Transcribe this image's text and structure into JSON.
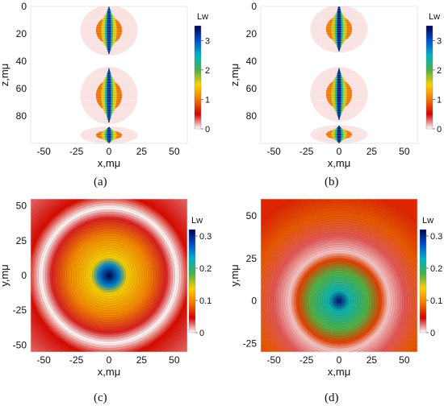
{
  "colorbar_stops": [
    "#ffffff",
    "#d40000",
    "#f07800",
    "#ffd000",
    "#48b048",
    "#00b2c8",
    "#0050d0",
    "#000050"
  ],
  "panels": [
    {
      "caption": "(a)",
      "type": "heatmap",
      "plane": "xz",
      "xlabel": "x,mμ",
      "ylabel": "z,mμ",
      "cbar_label": "Lw",
      "xlim": [
        -60,
        60
      ],
      "ylim": [
        0,
        100
      ],
      "y_inverted": true,
      "xticks": [
        -50,
        -25,
        0,
        25,
        50
      ],
      "yticks": [
        0,
        20,
        40,
        60,
        80
      ],
      "cbar_range": [
        0,
        3.5
      ],
      "cbar_ticks": [
        0,
        1,
        2,
        3
      ],
      "peak_value": 3.2,
      "focal_lobes_z": [
        [
          0,
          35
        ],
        [
          45,
          85
        ],
        [
          88,
          100
        ]
      ],
      "bright_spots_z": [
        10,
        65
      ]
    },
    {
      "caption": "(b)",
      "type": "heatmap",
      "plane": "xz",
      "xlabel": "x,mμ",
      "ylabel": "z,mμ",
      "cbar_label": "Lw",
      "xlim": [
        -60,
        60
      ],
      "ylim": [
        0,
        100
      ],
      "y_inverted": true,
      "xticks": [
        -50,
        -25,
        0,
        25,
        50
      ],
      "yticks": [
        0,
        20,
        40,
        60,
        80
      ],
      "cbar_range": [
        0,
        3.5
      ],
      "cbar_ticks": [
        0,
        1,
        2,
        3
      ],
      "peak_value": 3.3,
      "focal_lobes_z": [
        [
          0,
          33
        ],
        [
          45,
          83
        ],
        [
          87,
          100
        ]
      ],
      "bright_spots_z": [
        5,
        60
      ]
    },
    {
      "caption": "(c)",
      "type": "heatmap",
      "plane": "xy",
      "xlabel": "x,mμ",
      "ylabel": "y,mμ",
      "cbar_label": "Lw",
      "xlim": [
        -60,
        60
      ],
      "ylim": [
        -55,
        55
      ],
      "xticks": [
        -50,
        -25,
        0,
        25,
        50
      ],
      "yticks": [
        50,
        25,
        0,
        -25,
        -50
      ],
      "cbar_range": [
        0,
        0.32
      ],
      "cbar_ticks": [
        0,
        0.1,
        0.2,
        0.3
      ],
      "radial_profile": [
        {
          "r": 0,
          "value": 0.32
        },
        {
          "r": 8,
          "value": 0.25
        },
        {
          "r": 14,
          "value": 0.14
        },
        {
          "r": 30,
          "value": 0.1
        },
        {
          "r": 44,
          "value": 0.04
        },
        {
          "r": 52,
          "value": 0.0
        },
        {
          "r": 62,
          "value": 0.05
        },
        {
          "r": 80,
          "value": 0.03
        }
      ]
    },
    {
      "caption": "(d)",
      "type": "heatmap",
      "plane": "xy",
      "xlabel": "x,mμ",
      "ylabel": "y,mμ",
      "cbar_label": "Lw",
      "xlim": [
        -60,
        60
      ],
      "ylim": [
        -30,
        60
      ],
      "xticks": [
        -50,
        -25,
        0,
        25,
        50
      ],
      "yticks": [
        50,
        25,
        0,
        -25
      ],
      "cbar_range": [
        0,
        0.32
      ],
      "cbar_ticks": [
        0,
        0.1,
        0.2,
        0.3
      ],
      "radial_profile": [
        {
          "r": 0,
          "value": 0.31
        },
        {
          "r": 8,
          "value": 0.22
        },
        {
          "r": 22,
          "value": 0.18
        },
        {
          "r": 32,
          "value": 0.07
        },
        {
          "r": 38,
          "value": 0.01
        },
        {
          "r": 50,
          "value": 0.03
        },
        {
          "r": 66,
          "value": 0.08
        },
        {
          "r": 85,
          "value": 0.06
        }
      ]
    }
  ]
}
